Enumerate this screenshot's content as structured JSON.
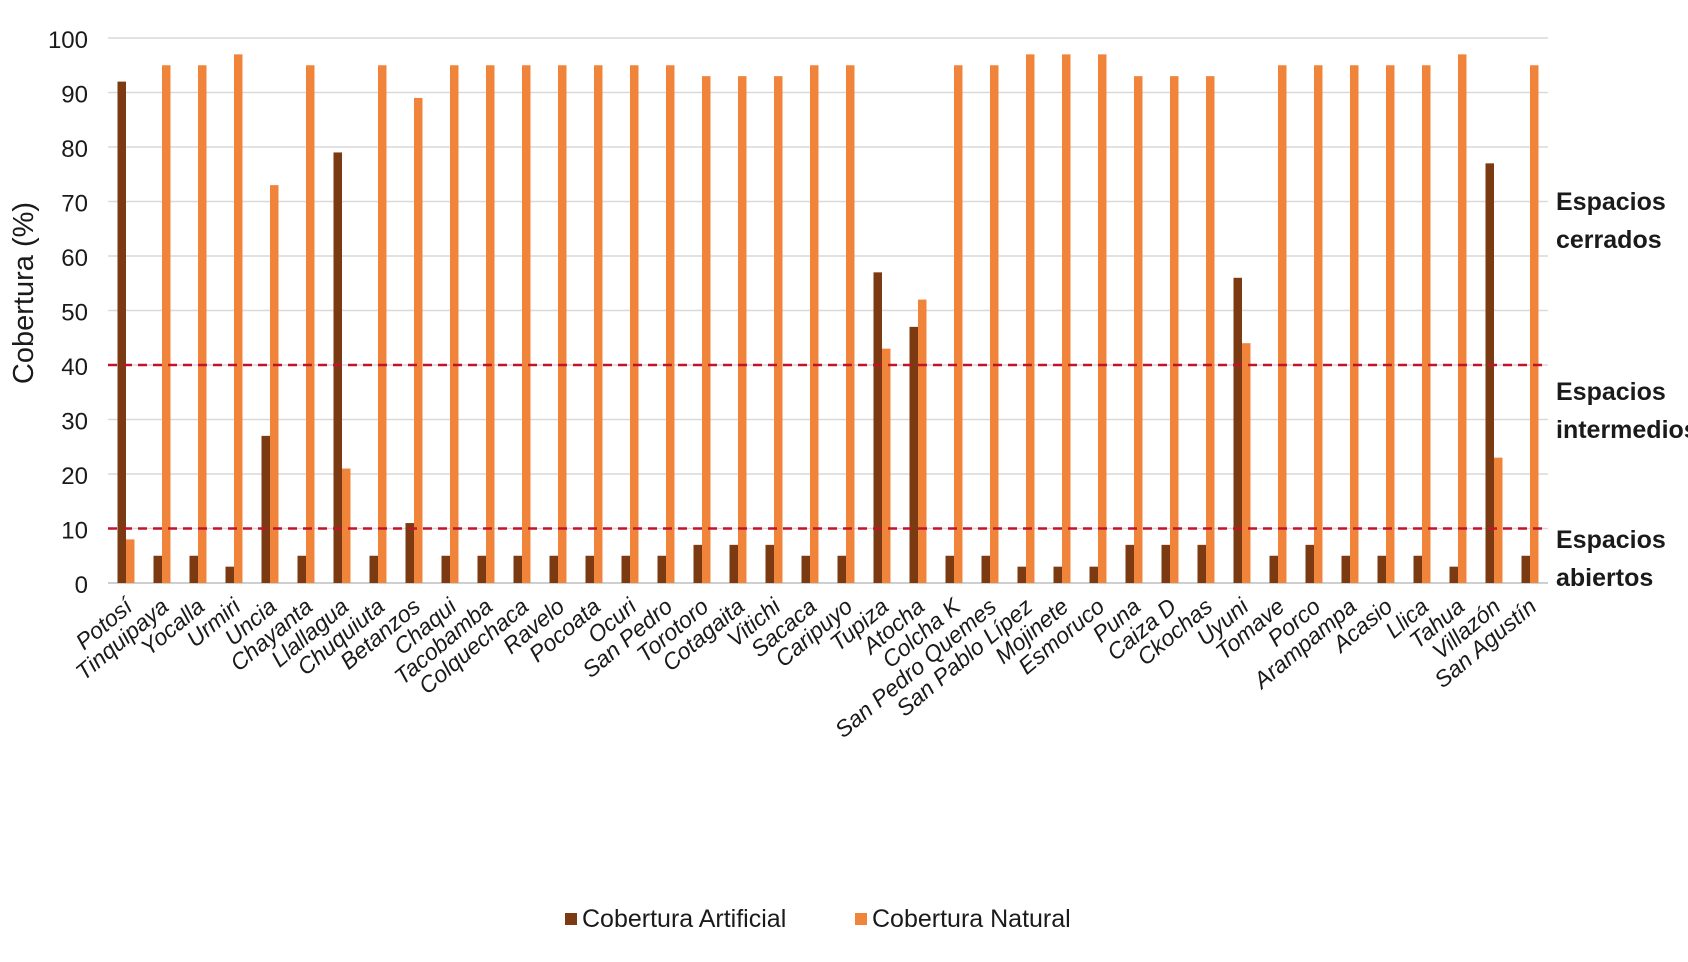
{
  "chart_data": {
    "type": "bar",
    "ylabel": "Cobertura (%)",
    "xlabel": "",
    "ylim": [
      0,
      100
    ],
    "yticks": [
      0,
      10,
      20,
      30,
      40,
      50,
      60,
      70,
      80,
      90,
      100
    ],
    "grid": true,
    "legend_position": "bottom",
    "categories": [
      "Potosí",
      "Tinquipaya",
      "Yocalla",
      "Urmiri",
      "Uncia",
      "Chayanta",
      "Llallagua",
      "Chuquiuta",
      "Betanzos",
      "Chaqui",
      "Tacobamba",
      "Colquechaca",
      "Ravelo",
      "Pocoata",
      "Ocuri",
      "San Pedro",
      "Torotoro",
      "Cotagaita",
      "Vitichi",
      "Sacaca",
      "Caripuyo",
      "Tupiza",
      "Atocha",
      "Colcha K",
      "San Pedro Quemes",
      "San Pablo Lípez",
      "Mojinete",
      "Esmoruco",
      "Puna",
      "Caiza D",
      "Ckochas",
      "Uyuni",
      "Tomave",
      "Porco",
      "Arampampa",
      "Acasio",
      "Llica",
      "Tahua",
      "Villazón",
      "San Agustín"
    ],
    "series": [
      {
        "name": "Cobertura Artificial",
        "color": "#7b3a12",
        "values": [
          92,
          5,
          5,
          3,
          27,
          5,
          79,
          5,
          11,
          5,
          5,
          5,
          5,
          5,
          5,
          5,
          7,
          7,
          7,
          5,
          5,
          57,
          47,
          5,
          5,
          3,
          3,
          3,
          7,
          7,
          7,
          56,
          5,
          7,
          5,
          5,
          5,
          3,
          77,
          5
        ]
      },
      {
        "name": "Cobertura Natural",
        "color": "#f0843a",
        "values": [
          8,
          95,
          95,
          97,
          73,
          95,
          21,
          95,
          89,
          95,
          95,
          95,
          95,
          95,
          95,
          95,
          93,
          93,
          93,
          95,
          95,
          43,
          52,
          95,
          95,
          97,
          97,
          97,
          93,
          93,
          93,
          44,
          95,
          95,
          95,
          95,
          95,
          97,
          23,
          95
        ]
      }
    ],
    "reference_lines": [
      {
        "y": 40,
        "color": "#c0142b",
        "style": "dashed"
      },
      {
        "y": 10,
        "color": "#c0142b",
        "style": "dashed"
      }
    ],
    "zone_labels": [
      {
        "lines": [
          "Espacios",
          "cerrados"
        ]
      },
      {
        "lines": [
          "Espacios",
          "intermedios"
        ]
      },
      {
        "lines": [
          "Espacios",
          "abiertos"
        ]
      }
    ]
  }
}
